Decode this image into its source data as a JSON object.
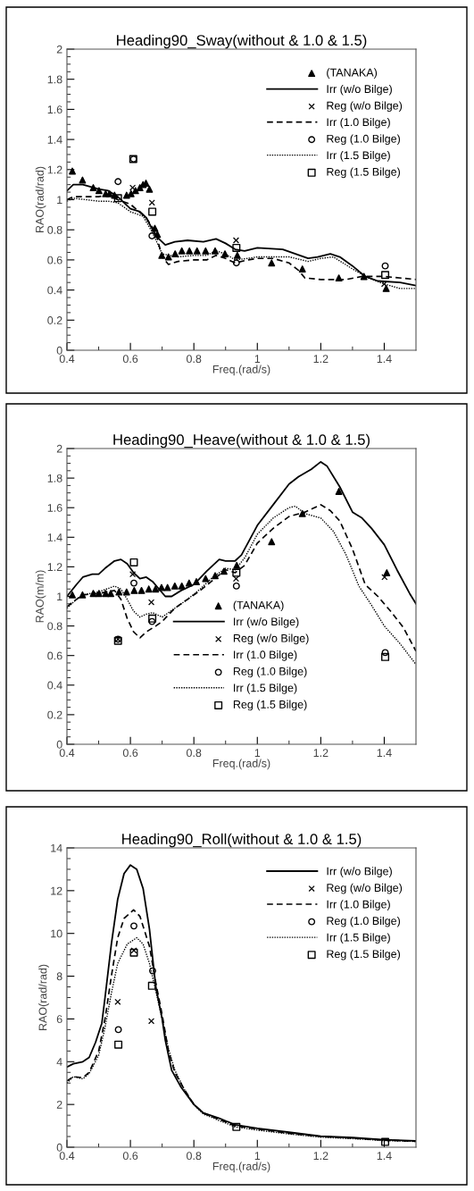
{
  "chart_data": [
    {
      "type": "line",
      "title": "Heading90_Sway(without & 1.0 & 1.5)",
      "xlabel": "Freq.(rad/s)",
      "ylabel": "RAO(rad/rad)",
      "xlim": [
        0.4,
        1.5
      ],
      "ylim": [
        0,
        2
      ],
      "xticks": [
        0.4,
        0.6,
        0.8,
        1,
        1.2,
        1.4
      ],
      "yticks": [
        0,
        0.2,
        0.4,
        0.6,
        0.8,
        1,
        1.2,
        1.4,
        1.6,
        1.8,
        2
      ],
      "grid": false,
      "legend": "top right",
      "series": [
        {
          "name": "(TANAKA)",
          "type": "scatter",
          "marker": "triangle",
          "color": "#000000",
          "x": [
            0.417,
            0.449,
            0.483,
            0.501,
            0.522,
            0.534,
            0.55,
            0.588,
            0.602,
            0.616,
            0.63,
            0.64,
            0.649,
            0.66,
            0.677,
            0.685,
            0.699,
            0.72,
            0.741,
            0.762,
            0.786,
            0.81,
            0.837,
            0.867,
            0.898,
            0.937,
            1.045,
            1.142,
            1.257,
            1.336,
            1.406
          ],
          "values": [
            1.19,
            1.13,
            1.08,
            1.06,
            1.04,
            1.04,
            1.03,
            1.03,
            1.04,
            1.06,
            1.08,
            1.1,
            1.11,
            1.07,
            0.81,
            0.77,
            0.63,
            0.62,
            0.64,
            0.66,
            0.66,
            0.66,
            0.66,
            0.66,
            0.64,
            0.63,
            0.58,
            0.54,
            0.48,
            0.49,
            0.41
          ]
        },
        {
          "name": "Irr (w/o Bilge)",
          "type": "line",
          "line_style": "solid",
          "color": "#000000",
          "x": [
            0.4,
            0.42,
            0.45,
            0.5,
            0.53,
            0.56,
            0.58,
            0.6,
            0.63,
            0.65,
            0.67,
            0.69,
            0.71,
            0.74,
            0.78,
            0.83,
            0.87,
            0.9,
            0.93,
            0.96,
            1.0,
            1.08,
            1.12,
            1.16,
            1.19,
            1.23,
            1.26,
            1.3,
            1.34,
            1.38,
            1.45,
            1.5
          ],
          "values": [
            1.06,
            1.1,
            1.1,
            1.07,
            1.06,
            1.02,
            0.98,
            0.94,
            0.92,
            0.88,
            0.8,
            0.74,
            0.7,
            0.72,
            0.73,
            0.72,
            0.74,
            0.71,
            0.67,
            0.66,
            0.68,
            0.67,
            0.64,
            0.61,
            0.62,
            0.64,
            0.62,
            0.56,
            0.49,
            0.46,
            0.45,
            0.43
          ]
        },
        {
          "name": "Reg (w/o Bilge)",
          "type": "scatter",
          "marker": "cross",
          "color": "#000000",
          "x": [
            0.607,
            0.668,
            0.933,
            1.4
          ],
          "values": [
            1.08,
            0.98,
            0.73,
            0.44
          ]
        },
        {
          "name": "Irr (1.0 Bilge)",
          "type": "line",
          "line_style": "dashed",
          "color": "#000000",
          "x": [
            0.4,
            0.42,
            0.5,
            0.53,
            0.56,
            0.6,
            0.65,
            0.68,
            0.7,
            0.72,
            0.75,
            0.8,
            0.84,
            0.87,
            0.9,
            0.93,
            0.97,
            1.0,
            1.05,
            1.1,
            1.13,
            1.15,
            1.2,
            1.28,
            1.33,
            1.4,
            1.5
          ],
          "values": [
            1.0,
            1.02,
            1.02,
            1.03,
            1.0,
            0.97,
            0.88,
            0.78,
            0.62,
            0.57,
            0.59,
            0.6,
            0.6,
            0.63,
            0.61,
            0.58,
            0.6,
            0.61,
            0.61,
            0.58,
            0.53,
            0.48,
            0.47,
            0.47,
            0.49,
            0.49,
            0.47
          ]
        },
        {
          "name": "Reg (1.0 Bilge)",
          "type": "scatter",
          "marker": "circle",
          "color": "#000000",
          "x": [
            0.561,
            0.61,
            0.668,
            0.934,
            1.403
          ],
          "values": [
            1.12,
            1.27,
            0.76,
            0.58,
            0.56
          ]
        },
        {
          "name": "Irr (1.5 Bilge)",
          "type": "line",
          "line_style": "dotted",
          "color": "#000000",
          "x": [
            0.4,
            0.42,
            0.5,
            0.53,
            0.56,
            0.6,
            0.64,
            0.67,
            0.7,
            0.75,
            0.8,
            0.84,
            0.87,
            0.9,
            0.93,
            0.97,
            1.0,
            1.1,
            1.16,
            1.2,
            1.24,
            1.3,
            1.35,
            1.4,
            1.45,
            1.5
          ],
          "values": [
            0.99,
            1.01,
            0.99,
            0.99,
            0.98,
            0.92,
            0.89,
            0.78,
            0.64,
            0.62,
            0.63,
            0.63,
            0.66,
            0.64,
            0.6,
            0.61,
            0.62,
            0.62,
            0.59,
            0.61,
            0.62,
            0.54,
            0.48,
            0.44,
            0.41,
            0.41
          ]
        },
        {
          "name": "Reg (1.5 Bilge)",
          "type": "scatter",
          "marker": "square",
          "color": "#000000",
          "x": [
            0.561,
            0.609,
            0.669,
            0.934,
            1.403
          ],
          "values": [
            1.01,
            1.27,
            0.92,
            0.68,
            0.5
          ]
        }
      ]
    },
    {
      "type": "line",
      "title": "Heading90_Heave(without & 1.0 & 1.5)",
      "xlabel": "Freq.(rad/s)",
      "ylabel": "RAO(m/m)",
      "xlim": [
        0.4,
        1.5
      ],
      "ylim": [
        0,
        2
      ],
      "xticks": [
        0.4,
        0.6,
        0.8,
        1,
        1.2,
        1.4
      ],
      "yticks": [
        0,
        0.2,
        0.4,
        0.6,
        0.8,
        1,
        1.2,
        1.4,
        1.6,
        1.8,
        2
      ],
      "grid": false,
      "legend": "bottom",
      "series": [
        {
          "name": "(TANAKA)",
          "type": "scatter",
          "marker": "triangle",
          "color": "#000000",
          "x": [
            0.417,
            0.449,
            0.483,
            0.501,
            0.522,
            0.538,
            0.564,
            0.588,
            0.612,
            0.635,
            0.658,
            0.679,
            0.698,
            0.717,
            0.74,
            0.762,
            0.785,
            0.808,
            0.837,
            0.867,
            0.895,
            0.935,
            1.045,
            1.142,
            1.257,
            1.408
          ],
          "values": [
            1.01,
            1.01,
            1.02,
            1.02,
            1.02,
            1.02,
            1.03,
            1.03,
            1.04,
            1.04,
            1.05,
            1.05,
            1.06,
            1.06,
            1.07,
            1.07,
            1.09,
            1.1,
            1.12,
            1.14,
            1.17,
            1.21,
            1.37,
            1.56,
            1.71,
            1.16
          ]
        },
        {
          "name": "Irr (w/o Bilge)",
          "type": "line",
          "line_style": "solid",
          "color": "#000000",
          "x": [
            0.4,
            0.43,
            0.45,
            0.48,
            0.5,
            0.52,
            0.55,
            0.57,
            0.59,
            0.61,
            0.63,
            0.65,
            0.67,
            0.69,
            0.71,
            0.73,
            0.76,
            0.8,
            0.84,
            0.88,
            0.9,
            0.93,
            0.95,
            1.0,
            1.05,
            1.1,
            1.13,
            1.17,
            1.2,
            1.22,
            1.26,
            1.3,
            1.33,
            1.36,
            1.4,
            1.44,
            1.48,
            1.5
          ],
          "values": [
            1.0,
            1.08,
            1.13,
            1.15,
            1.15,
            1.19,
            1.24,
            1.25,
            1.22,
            1.16,
            1.12,
            1.13,
            1.1,
            1.05,
            1.0,
            1.0,
            1.04,
            1.08,
            1.17,
            1.25,
            1.24,
            1.24,
            1.28,
            1.48,
            1.62,
            1.76,
            1.81,
            1.86,
            1.91,
            1.88,
            1.74,
            1.57,
            1.53,
            1.46,
            1.35,
            1.18,
            1.02,
            0.95
          ]
        },
        {
          "name": "Reg (w/o Bilge)",
          "type": "scatter",
          "marker": "cross",
          "color": "#000000",
          "x": [
            0.561,
            0.607,
            0.666,
            0.933,
            1.401
          ],
          "values": [
            0.71,
            1.15,
            0.96,
            1.12,
            1.13
          ]
        },
        {
          "name": "Irr (1.0 Bilge)",
          "type": "line",
          "line_style": "dashed",
          "color": "#000000",
          "x": [
            0.4,
            0.43,
            0.45,
            0.5,
            0.55,
            0.57,
            0.59,
            0.61,
            0.63,
            0.65,
            0.68,
            0.7,
            0.74,
            0.78,
            0.82,
            0.86,
            0.9,
            0.93,
            0.96,
            1.0,
            1.05,
            1.1,
            1.15,
            1.2,
            1.23,
            1.26,
            1.3,
            1.34,
            1.38,
            1.42,
            1.46,
            1.5
          ],
          "values": [
            0.93,
            0.98,
            1.01,
            1.02,
            1.04,
            0.98,
            0.85,
            0.76,
            0.72,
            0.76,
            0.8,
            0.83,
            0.92,
            0.98,
            1.04,
            1.11,
            1.18,
            1.16,
            1.21,
            1.36,
            1.46,
            1.54,
            1.57,
            1.62,
            1.58,
            1.51,
            1.32,
            1.08,
            1.0,
            0.9,
            0.79,
            0.63
          ]
        },
        {
          "name": "Reg (1.0 Bilge)",
          "type": "scatter",
          "marker": "circle",
          "color": "#000000",
          "x": [
            0.561,
            0.611,
            0.668,
            0.934,
            1.403
          ],
          "values": [
            0.71,
            1.09,
            0.83,
            1.07,
            0.62
          ]
        },
        {
          "name": "Irr (1.5 Bilge)",
          "type": "line",
          "line_style": "dotted",
          "color": "#000000",
          "x": [
            0.4,
            0.43,
            0.45,
            0.5,
            0.55,
            0.57,
            0.59,
            0.61,
            0.63,
            0.65,
            0.67,
            0.7,
            0.74,
            0.78,
            0.82,
            0.86,
            0.9,
            0.93,
            0.96,
            1.0,
            1.05,
            1.1,
            1.12,
            1.15,
            1.2,
            1.24,
            1.28,
            1.32,
            1.36,
            1.4,
            1.45,
            1.5
          ],
          "values": [
            0.92,
            0.98,
            1.01,
            1.03,
            1.07,
            1.05,
            0.98,
            0.9,
            0.86,
            0.88,
            0.89,
            0.86,
            0.92,
            0.98,
            1.05,
            1.13,
            1.19,
            1.18,
            1.26,
            1.42,
            1.53,
            1.6,
            1.61,
            1.56,
            1.53,
            1.44,
            1.28,
            1.07,
            0.94,
            0.8,
            0.68,
            0.54
          ]
        },
        {
          "name": "Reg (1.5 Bilge)",
          "type": "scatter",
          "marker": "square",
          "color": "#000000",
          "x": [
            0.561,
            0.611,
            0.669,
            0.934,
            1.403
          ],
          "values": [
            0.7,
            1.23,
            0.85,
            1.16,
            0.59
          ]
        }
      ]
    },
    {
      "type": "line",
      "title": "Heading90_Roll(without & 1.0 & 1.5)",
      "xlabel": "Freq.(rad/s)",
      "ylabel": "RAO(rad/rad)",
      "xlim": [
        0.4,
        1.5
      ],
      "ylim": [
        0,
        14
      ],
      "xticks": [
        0.4,
        0.6,
        0.8,
        1,
        1.2,
        1.4
      ],
      "yticks": [
        0,
        2,
        4,
        6,
        8,
        10,
        12,
        14
      ],
      "grid": false,
      "legend": "top right",
      "series": [
        {
          "name": "Irr (w/o Bilge)",
          "type": "line",
          "line_style": "solid",
          "color": "#000000",
          "x": [
            0.4,
            0.42,
            0.45,
            0.47,
            0.49,
            0.51,
            0.52,
            0.54,
            0.56,
            0.58,
            0.6,
            0.62,
            0.64,
            0.66,
            0.68,
            0.7,
            0.71,
            0.73,
            0.76,
            0.8,
            0.83,
            0.88,
            0.93,
            1.0,
            1.1,
            1.2,
            1.3,
            1.4,
            1.5
          ],
          "values": [
            3.75,
            3.9,
            4.0,
            4.2,
            4.9,
            5.8,
            7.0,
            9.5,
            11.6,
            12.8,
            13.2,
            13.0,
            12.1,
            10.2,
            7.5,
            6.0,
            5.0,
            3.6,
            2.8,
            2.0,
            1.6,
            1.35,
            1.05,
            0.88,
            0.7,
            0.52,
            0.45,
            0.35,
            0.3
          ]
        },
        {
          "name": "Reg (w/o Bilge)",
          "type": "scatter",
          "marker": "cross",
          "color": "#000000",
          "x": [
            0.56,
            0.611,
            0.666
          ],
          "values": [
            6.8,
            9.2,
            5.9
          ]
        },
        {
          "name": "Irr (1.0 Bilge)",
          "type": "line",
          "line_style": "dashed",
          "color": "#000000",
          "x": [
            0.4,
            0.42,
            0.45,
            0.47,
            0.5,
            0.52,
            0.54,
            0.56,
            0.58,
            0.61,
            0.63,
            0.66,
            0.68,
            0.7,
            0.72,
            0.74,
            0.77,
            0.8,
            0.83,
            0.88,
            0.93,
            1.0,
            1.1,
            1.2,
            1.3,
            1.4,
            1.5
          ],
          "values": [
            3.1,
            3.3,
            3.25,
            3.5,
            4.5,
            6.0,
            8.0,
            9.8,
            10.7,
            11.1,
            10.8,
            9.4,
            7.7,
            6.2,
            4.5,
            3.5,
            2.7,
            2.0,
            1.6,
            1.3,
            1.0,
            0.85,
            0.65,
            0.5,
            0.42,
            0.33,
            0.28
          ]
        },
        {
          "name": "Reg (1.0 Bilge)",
          "type": "scatter",
          "marker": "circle",
          "color": "#000000",
          "x": [
            0.562,
            0.611,
            0.67
          ],
          "values": [
            5.5,
            10.35,
            8.25
          ]
        },
        {
          "name": "Irr (1.5 Bilge)",
          "type": "line",
          "line_style": "dotted",
          "color": "#000000",
          "x": [
            0.4,
            0.42,
            0.45,
            0.47,
            0.5,
            0.52,
            0.54,
            0.56,
            0.59,
            0.62,
            0.64,
            0.66,
            0.68,
            0.7,
            0.72,
            0.74,
            0.77,
            0.8,
            0.83,
            0.88,
            0.93,
            1.0,
            1.1,
            1.2,
            1.3,
            1.4,
            1.5
          ],
          "values": [
            3.0,
            3.3,
            3.2,
            3.45,
            4.3,
            5.6,
            7.2,
            8.6,
            9.5,
            9.8,
            9.5,
            8.6,
            7.3,
            6.0,
            4.6,
            3.6,
            2.7,
            2.0,
            1.55,
            1.25,
            0.95,
            0.8,
            0.62,
            0.47,
            0.4,
            0.31,
            0.27
          ]
        },
        {
          "name": "Reg (1.5 Bilge)",
          "type": "scatter",
          "marker": "square",
          "color": "#000000",
          "x": [
            0.562,
            0.611,
            0.668,
            0.934,
            1.403
          ],
          "values": [
            4.8,
            9.1,
            7.55,
            0.95,
            0.25
          ]
        }
      ]
    }
  ]
}
